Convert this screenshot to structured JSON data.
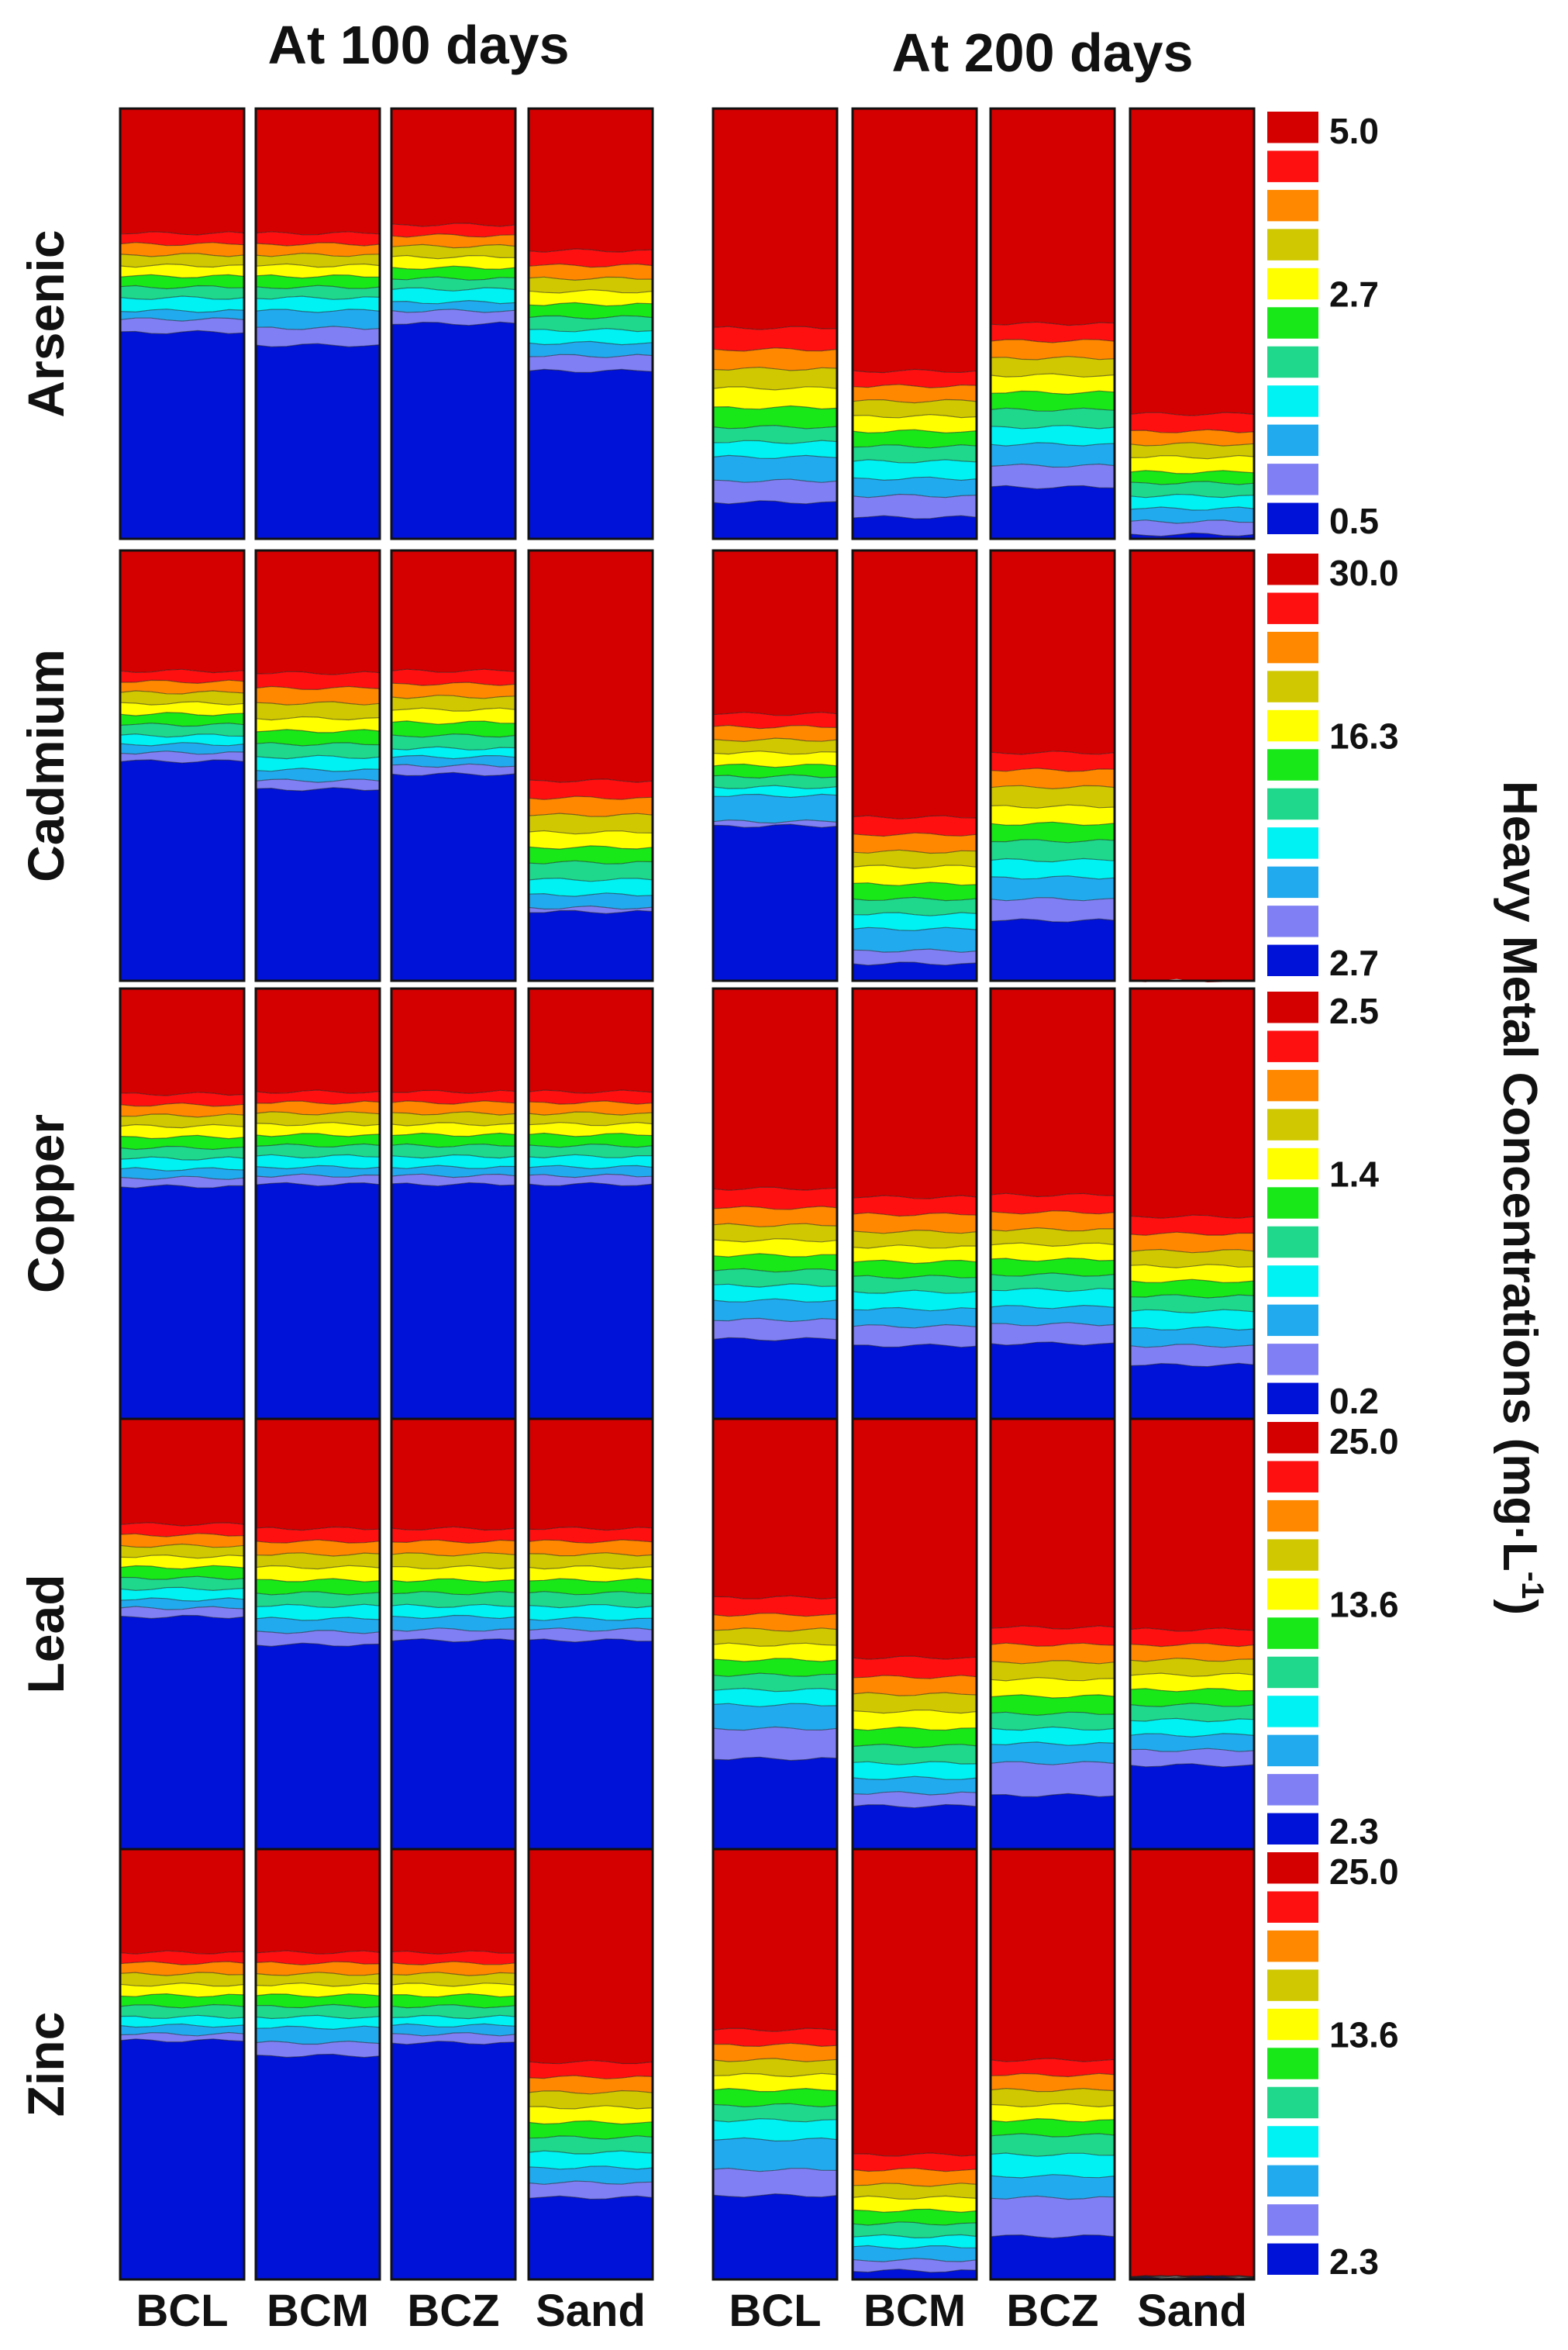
{
  "chart_data": {
    "type": "heatmap",
    "title": "",
    "time_titles": [
      "At 100 days",
      "At 200 days"
    ],
    "metals": [
      "Arsenic",
      "Cadmium",
      "Copper",
      "Lead",
      "Zinc"
    ],
    "columns": [
      "BCL",
      "BCM",
      "BCZ",
      "Sand"
    ],
    "colorbar_title": "Heavy Metal Concentrations (mg·L-1)",
    "colorbar_title_main": "Heavy Metal Concentrations (mg·L",
    "colorbar_title_sup": "-1",
    "colorbar_title_end": ")",
    "palette": [
      "#0012d8",
      "#8080f4",
      "#22aaee",
      "#00f2f2",
      "#1fd88c",
      "#18e818",
      "#ffff00",
      "#d0c800",
      "#ff8800",
      "#ff1010",
      "#d40000"
    ],
    "colorbars": [
      {
        "metal": "Arsenic",
        "max": "5.0",
        "mid": "2.7",
        "min": "0.5"
      },
      {
        "metal": "Cadmium",
        "max": "30.0",
        "mid": "16.3",
        "min": "2.7"
      },
      {
        "metal": "Copper",
        "max": "2.5",
        "mid": "1.4",
        "min": "0.2"
      },
      {
        "metal": "Lead",
        "max": "25.0",
        "mid": "13.6",
        "min": "2.3"
      },
      {
        "metal": "Zinc",
        "max": "25.0",
        "mid": "13.6",
        "min": "2.3"
      }
    ],
    "units": "fraction of column depth from top (0 = top, 1 = bottom) where each contour band begins; red above first value, blue below last",
    "boundaries": {
      "Arsenic": {
        "100": [
          [
            0.29,
            0.315,
            0.34,
            0.365,
            0.39,
            0.415,
            0.44,
            0.47,
            0.49,
            0.52
          ],
          [
            0.29,
            0.315,
            0.34,
            0.365,
            0.39,
            0.415,
            0.44,
            0.47,
            0.51,
            0.55
          ],
          [
            0.27,
            0.295,
            0.32,
            0.345,
            0.37,
            0.395,
            0.42,
            0.45,
            0.47,
            0.5
          ],
          [
            0.33,
            0.365,
            0.395,
            0.425,
            0.455,
            0.485,
            0.515,
            0.545,
            0.575,
            0.61
          ]
        ],
        "200": [
          [
            0.51,
            0.56,
            0.605,
            0.65,
            0.695,
            0.74,
            0.775,
            0.81,
            0.865,
            0.915
          ],
          [
            0.61,
            0.645,
            0.68,
            0.715,
            0.75,
            0.785,
            0.82,
            0.86,
            0.9,
            0.95
          ],
          [
            0.5,
            0.54,
            0.58,
            0.62,
            0.66,
            0.7,
            0.74,
            0.78,
            0.83,
            0.88
          ],
          [
            0.71,
            0.75,
            0.78,
            0.81,
            0.845,
            0.87,
            0.9,
            0.93,
            0.96,
            0.99
          ]
        ]
      },
      "Cadmium": {
        "100": [
          [
            0.28,
            0.305,
            0.33,
            0.355,
            0.38,
            0.405,
            0.43,
            0.45,
            0.47,
            0.49
          ],
          [
            0.285,
            0.32,
            0.355,
            0.39,
            0.42,
            0.45,
            0.48,
            0.51,
            0.535,
            0.555
          ],
          [
            0.28,
            0.31,
            0.34,
            0.37,
            0.4,
            0.43,
            0.46,
            0.48,
            0.5,
            0.52
          ],
          [
            0.535,
            0.575,
            0.615,
            0.655,
            0.69,
            0.725,
            0.765,
            0.8,
            0.83,
            0.84
          ]
        ],
        "200": [
          [
            0.38,
            0.41,
            0.44,
            0.47,
            0.5,
            0.525,
            0.55,
            0.57,
            0.63,
            0.64
          ],
          [
            0.62,
            0.66,
            0.7,
            0.735,
            0.775,
            0.81,
            0.845,
            0.88,
            0.93,
            0.96
          ],
          [
            0.47,
            0.51,
            0.55,
            0.595,
            0.635,
            0.675,
            0.72,
            0.76,
            0.81,
            0.86
          ],
          [
            1.01,
            1.01,
            1.01,
            1.01,
            1.01,
            1.01,
            1.01,
            1.01,
            1.01,
            1.01
          ]
        ]
      },
      "Copper": {
        "100": [
          [
            0.245,
            0.27,
            0.295,
            0.32,
            0.345,
            0.37,
            0.395,
            0.42,
            0.44,
            0.46
          ],
          [
            0.24,
            0.265,
            0.29,
            0.315,
            0.34,
            0.365,
            0.39,
            0.415,
            0.435,
            0.455
          ],
          [
            0.24,
            0.265,
            0.29,
            0.315,
            0.34,
            0.365,
            0.39,
            0.415,
            0.435,
            0.455
          ],
          [
            0.24,
            0.265,
            0.29,
            0.315,
            0.34,
            0.365,
            0.39,
            0.415,
            0.435,
            0.455
          ]
        ],
        "200": [
          [
            0.465,
            0.51,
            0.55,
            0.585,
            0.62,
            0.655,
            0.69,
            0.725,
            0.77,
            0.815
          ],
          [
            0.485,
            0.525,
            0.565,
            0.6,
            0.635,
            0.67,
            0.705,
            0.745,
            0.785,
            0.83
          ],
          [
            0.48,
            0.52,
            0.56,
            0.595,
            0.63,
            0.665,
            0.7,
            0.74,
            0.78,
            0.825
          ],
          [
            0.53,
            0.57,
            0.61,
            0.645,
            0.68,
            0.715,
            0.75,
            0.79,
            0.83,
            0.875
          ]
        ]
      },
      "Lead": {
        "100": [
          [
            0.245,
            0.27,
            0.295,
            0.32,
            0.345,
            0.37,
            0.395,
            0.42,
            0.44,
            0.46
          ],
          [
            0.255,
            0.285,
            0.315,
            0.345,
            0.375,
            0.405,
            0.435,
            0.465,
            0.495,
            0.525
          ],
          [
            0.255,
            0.285,
            0.315,
            0.345,
            0.375,
            0.405,
            0.435,
            0.46,
            0.49,
            0.515
          ],
          [
            0.255,
            0.285,
            0.315,
            0.345,
            0.375,
            0.405,
            0.435,
            0.465,
            0.49,
            0.515
          ]
        ],
        "200": [
          [
            0.415,
            0.455,
            0.49,
            0.525,
            0.56,
            0.595,
            0.63,
            0.665,
            0.72,
            0.79
          ],
          [
            0.555,
            0.6,
            0.64,
            0.68,
            0.72,
            0.76,
            0.8,
            0.835,
            0.87,
            0.9
          ],
          [
            0.485,
            0.525,
            0.565,
            0.605,
            0.645,
            0.685,
            0.72,
            0.755,
            0.8,
            0.875
          ],
          [
            0.49,
            0.525,
            0.56,
            0.595,
            0.63,
            0.665,
            0.7,
            0.735,
            0.77,
            0.805
          ]
        ]
      },
      "Zinc": {
        "100": [
          [
            0.24,
            0.265,
            0.29,
            0.315,
            0.34,
            0.365,
            0.39,
            0.41,
            0.43,
            0.445
          ],
          [
            0.24,
            0.265,
            0.29,
            0.315,
            0.34,
            0.365,
            0.39,
            0.415,
            0.45,
            0.48
          ],
          [
            0.24,
            0.265,
            0.29,
            0.315,
            0.34,
            0.365,
            0.39,
            0.41,
            0.43,
            0.45
          ],
          [
            0.495,
            0.53,
            0.565,
            0.6,
            0.635,
            0.67,
            0.705,
            0.74,
            0.775,
            0.81
          ]
        ],
        "200": [
          [
            0.42,
            0.455,
            0.49,
            0.525,
            0.56,
            0.595,
            0.63,
            0.675,
            0.745,
            0.805
          ],
          [
            0.71,
            0.745,
            0.78,
            0.81,
            0.84,
            0.87,
            0.9,
            0.925,
            0.955,
            0.98
          ],
          [
            0.49,
            0.525,
            0.56,
            0.595,
            0.63,
            0.665,
            0.71,
            0.76,
            0.81,
            0.9
          ],
          [
            0.995,
            0.995,
            0.995,
            0.995,
            0.995,
            0.995,
            0.995,
            0.995,
            0.995,
            0.995
          ]
        ]
      }
    }
  }
}
